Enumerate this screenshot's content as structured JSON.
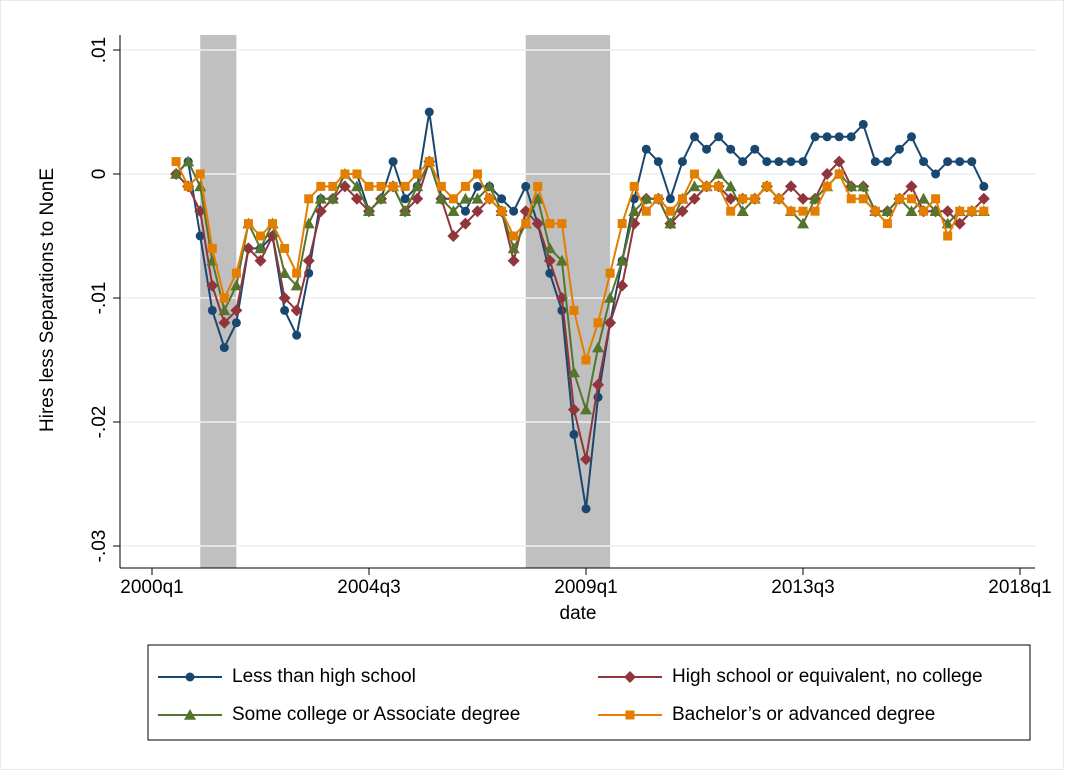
{
  "chart_data": {
    "type": "line",
    "y_label": "Hires less Separations to NonE",
    "x_label": "date",
    "x": [
      "2000q3",
      "2000q4",
      "2001q1",
      "2001q2",
      "2001q3",
      "2001q4",
      "2002q1",
      "2002q2",
      "2002q3",
      "2002q4",
      "2003q1",
      "2003q2",
      "2003q3",
      "2003q4",
      "2004q1",
      "2004q2",
      "2004q3",
      "2004q4",
      "2005q1",
      "2005q2",
      "2005q3",
      "2005q4",
      "2006q1",
      "2006q2",
      "2006q3",
      "2006q4",
      "2007q1",
      "2007q2",
      "2007q3",
      "2007q4",
      "2008q1",
      "2008q2",
      "2008q3",
      "2008q4",
      "2009q1",
      "2009q2",
      "2009q3",
      "2009q4",
      "2010q1",
      "2010q2",
      "2010q3",
      "2010q4",
      "2011q1",
      "2011q2",
      "2011q3",
      "2011q4",
      "2012q1",
      "2012q2",
      "2012q3",
      "2012q4",
      "2013q1",
      "2013q2",
      "2013q3",
      "2013q4",
      "2014q1",
      "2014q2",
      "2014q3",
      "2014q4",
      "2015q1",
      "2015q2",
      "2015q3",
      "2015q4",
      "2016q1",
      "2016q2",
      "2016q3",
      "2016q4",
      "2017q1",
      "2017q2"
    ],
    "series": [
      {
        "name": "Less than high school",
        "color": "#1a476f",
        "marker": "circle",
        "values": [
          0,
          0.001,
          -0.005,
          -0.011,
          -0.014,
          -0.012,
          -0.006,
          -0.006,
          -0.005,
          -0.011,
          -0.013,
          -0.008,
          -0.002,
          -0.002,
          0,
          0,
          -0.003,
          -0.002,
          0.001,
          -0.002,
          -0.001,
          0.005,
          -0.002,
          -0.002,
          -0.003,
          -0.001,
          -0.001,
          -0.002,
          -0.003,
          -0.001,
          -0.004,
          -0.008,
          -0.011,
          -0.021,
          -0.027,
          -0.018,
          -0.012,
          -0.007,
          -0.002,
          0.002,
          0.001,
          -0.002,
          0.001,
          0.003,
          0.002,
          0.003,
          0.002,
          0.001,
          0.002,
          0.001,
          0.001,
          0.001,
          0.001,
          0.003,
          0.003,
          0.003,
          0.003,
          0.004,
          0.001,
          0.001,
          0.002,
          0.003,
          0.001,
          0,
          0.001,
          0.001,
          0.001,
          -0.001
        ]
      },
      {
        "name": "High school or equivalent, no college",
        "color": "#90353b",
        "marker": "diamond",
        "values": [
          0,
          -0.001,
          -0.003,
          -0.009,
          -0.012,
          -0.011,
          -0.006,
          -0.007,
          -0.005,
          -0.01,
          -0.011,
          -0.007,
          -0.003,
          -0.002,
          -0.001,
          -0.002,
          -0.003,
          -0.002,
          -0.001,
          -0.003,
          -0.002,
          0.001,
          -0.002,
          -0.005,
          -0.004,
          -0.003,
          -0.002,
          -0.003,
          -0.007,
          -0.003,
          -0.004,
          -0.007,
          -0.01,
          -0.019,
          -0.023,
          -0.017,
          -0.012,
          -0.009,
          -0.004,
          -0.002,
          -0.002,
          -0.004,
          -0.003,
          -0.002,
          -0.001,
          -0.001,
          -0.002,
          -0.002,
          -0.002,
          -0.001,
          -0.002,
          -0.001,
          -0.002,
          -0.002,
          0,
          0.001,
          -0.001,
          -0.001,
          -0.003,
          -0.003,
          -0.002,
          -0.001,
          -0.003,
          -0.003,
          -0.003,
          -0.004,
          -0.003,
          -0.002
        ]
      },
      {
        "name": "Some college or Associate degree",
        "color": "#55752f",
        "marker": "triangle",
        "values": [
          0,
          0.001,
          -0.001,
          -0.007,
          -0.011,
          -0.009,
          -0.004,
          -0.006,
          -0.004,
          -0.008,
          -0.009,
          -0.004,
          -0.002,
          -0.002,
          0,
          -0.001,
          -0.003,
          -0.002,
          -0.001,
          -0.003,
          -0.001,
          0.001,
          -0.002,
          -0.003,
          -0.002,
          -0.002,
          -0.001,
          -0.003,
          -0.006,
          -0.004,
          -0.002,
          -0.006,
          -0.007,
          -0.016,
          -0.019,
          -0.014,
          -0.01,
          -0.007,
          -0.003,
          -0.002,
          -0.002,
          -0.004,
          -0.002,
          -0.001,
          -0.001,
          0,
          -0.001,
          -0.003,
          -0.002,
          -0.001,
          -0.002,
          -0.003,
          -0.004,
          -0.002,
          -0.001,
          0,
          -0.001,
          -0.001,
          -0.003,
          -0.003,
          -0.002,
          -0.003,
          -0.002,
          -0.003,
          -0.004,
          -0.003,
          -0.003,
          -0.003
        ]
      },
      {
        "name": "Bachelor’s or advanced degree",
        "color": "#e37e00",
        "marker": "square",
        "values": [
          0.001,
          -0.001,
          0,
          -0.006,
          -0.01,
          -0.008,
          -0.004,
          -0.005,
          -0.004,
          -0.006,
          -0.008,
          -0.002,
          -0.001,
          -0.001,
          0,
          0,
          -0.001,
          -0.001,
          -0.001,
          -0.001,
          0,
          0.001,
          -0.001,
          -0.002,
          -0.001,
          0,
          -0.002,
          -0.003,
          -0.005,
          -0.004,
          -0.001,
          -0.004,
          -0.004,
          -0.011,
          -0.015,
          -0.012,
          -0.008,
          -0.004,
          -0.001,
          -0.003,
          -0.002,
          -0.003,
          -0.002,
          0,
          -0.001,
          -0.001,
          -0.003,
          -0.002,
          -0.002,
          -0.001,
          -0.002,
          -0.003,
          -0.003,
          -0.003,
          -0.001,
          0,
          -0.002,
          -0.002,
          -0.003,
          -0.004,
          -0.002,
          -0.002,
          -0.003,
          -0.002,
          -0.005,
          -0.003,
          -0.003,
          -0.003
        ]
      }
    ],
    "shaded_periods": [
      [
        "2001q1",
        "2001q4"
      ],
      [
        "2007q4",
        "2009q3"
      ]
    ],
    "shade_color": "#c0c0c0",
    "xlim": [
      "2000q1",
      "2018q1"
    ],
    "xticks": [
      "2000q1",
      "2004q3",
      "2009q1",
      "2013q3",
      "2018q1"
    ],
    "ylim": [
      -0.03,
      0.01
    ],
    "yticks": [
      {
        "value": 0.01,
        "label": ".01"
      },
      0,
      {
        "value": -0.01,
        "label": "-.01"
      },
      {
        "value": -0.02,
        "label": "-.02"
      },
      {
        "value": -0.03,
        "label": "-.03"
      }
    ],
    "grid": true,
    "legend_position": "bottom"
  }
}
